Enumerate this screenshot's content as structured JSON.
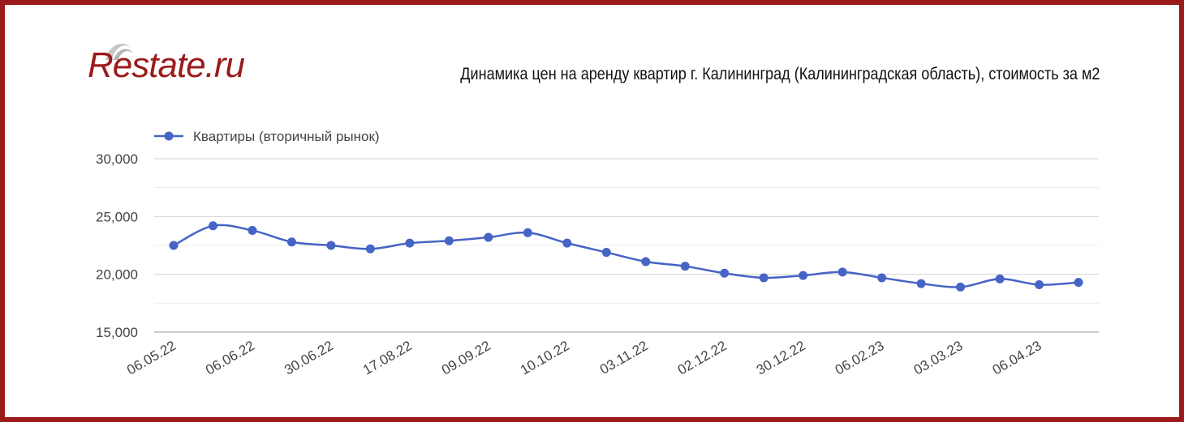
{
  "logo": {
    "text": "Restate.ru"
  },
  "chart_data": {
    "type": "line",
    "title": "Динамика цен на аренду квартир г. Калининград (Калининградская область), стоимость за м2",
    "xlabel": "",
    "ylabel": "",
    "ylim": [
      15000,
      30000
    ],
    "yticks": [
      "30,000",
      "25,000",
      "20,000",
      "15,000"
    ],
    "ytick_values": [
      30000,
      25000,
      20000,
      15000
    ],
    "ygrid_minor_values": [
      27500,
      22500,
      17500
    ],
    "grid": true,
    "legend_position": "top-left",
    "x_tick_labels": [
      "06.05.22",
      "06.06.22",
      "30.06.22",
      "17.08.22",
      "09.09.22",
      "10.10.22",
      "03.11.22",
      "02.12.22",
      "30.12.22",
      "06.02.23",
      "03.03.23",
      "06.04.23"
    ],
    "x_tick_point_index": [
      0,
      2,
      4,
      6,
      8,
      10,
      12,
      14,
      16,
      18,
      20,
      22
    ],
    "series": [
      {
        "name": "Квартиры (вторичный рынок)",
        "color": "#4663c6",
        "values": [
          22500,
          24200,
          23800,
          22800,
          22500,
          22200,
          22700,
          22900,
          23200,
          23600,
          22700,
          21900,
          21100,
          20700,
          20100,
          19700,
          19900,
          20200,
          19700,
          19200,
          18900,
          19600,
          19100,
          19300
        ]
      }
    ]
  }
}
